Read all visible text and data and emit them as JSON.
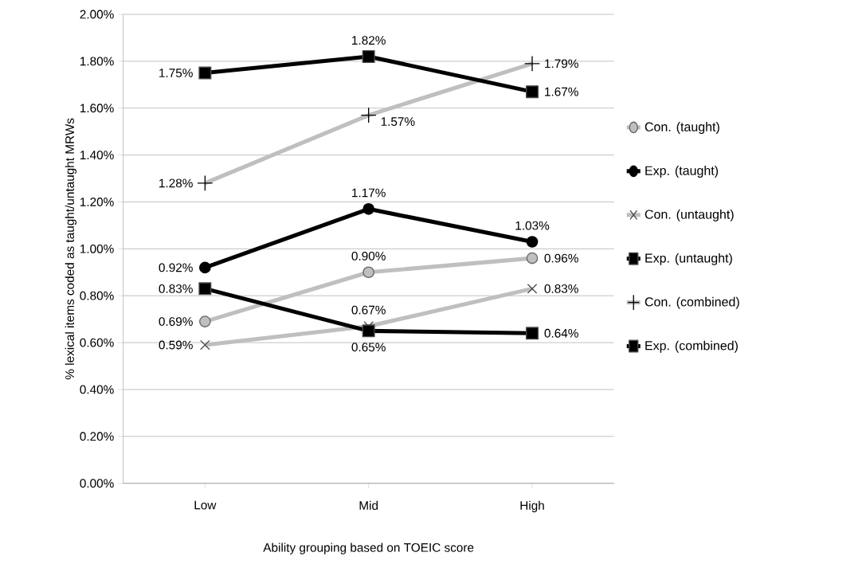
{
  "chart_data": {
    "type": "line",
    "xlabel": "Ability grouping based on TOEIC score",
    "ylabel": "% lexical items coded as taught/untaught MRWs",
    "categories": [
      "Low",
      "Mid",
      "High"
    ],
    "series": [
      {
        "name": "Con. (taught)",
        "color": "#bfbfbf",
        "marker": "circle",
        "values": [
          0.69,
          0.9,
          0.96
        ],
        "value_labels": [
          "0.69%",
          "0.90%",
          "0.96%"
        ]
      },
      {
        "name": "Exp. (taught)",
        "color": "#000000",
        "marker": "circle",
        "values": [
          0.92,
          1.17,
          1.03
        ],
        "value_labels": [
          "0.92%",
          "1.17%",
          "1.03%"
        ]
      },
      {
        "name": "Con. (untaught)",
        "color": "#bfbfbf",
        "marker": "cross",
        "values": [
          0.59,
          0.67,
          0.83
        ],
        "value_labels": [
          "0.59%",
          "0.67%",
          "0.83%"
        ]
      },
      {
        "name": "Exp. (untaught)",
        "color": "#000000",
        "marker": "square",
        "values": [
          0.83,
          0.65,
          0.64
        ],
        "value_labels": [
          "0.83%",
          "0.65%",
          "0.64%"
        ]
      },
      {
        "name": "Con. (combined)",
        "color": "#bfbfbf",
        "marker": "plus",
        "values": [
          1.28,
          1.57,
          1.79
        ],
        "value_labels": [
          "1.28%",
          "1.57%",
          "1.79%"
        ]
      },
      {
        "name": "Exp. (combined)",
        "color": "#000000",
        "marker": "square",
        "values": [
          1.75,
          1.82,
          1.67
        ],
        "value_labels": [
          "1.75%",
          "1.82%",
          "1.67%"
        ]
      }
    ],
    "ylim": [
      0,
      2
    ],
    "yticks": [
      {
        "value": 0,
        "label": "0.00%"
      },
      {
        "value": 0.2,
        "label": "0.20%"
      },
      {
        "value": 0.4,
        "label": "0.40%"
      },
      {
        "value": 0.6,
        "label": "0.60%"
      },
      {
        "value": 0.8,
        "label": "0.80%"
      },
      {
        "value": 1.0,
        "label": "1.00%"
      },
      {
        "value": 1.2,
        "label": "1.20%"
      },
      {
        "value": 1.4,
        "label": "1.40%"
      },
      {
        "value": 1.6,
        "label": "1.60%"
      },
      {
        "value": 1.8,
        "label": "1.80%"
      },
      {
        "value": 2.0,
        "label": "2.00%"
      }
    ],
    "grid": "y",
    "legend": "right",
    "line_style": "solid"
  }
}
